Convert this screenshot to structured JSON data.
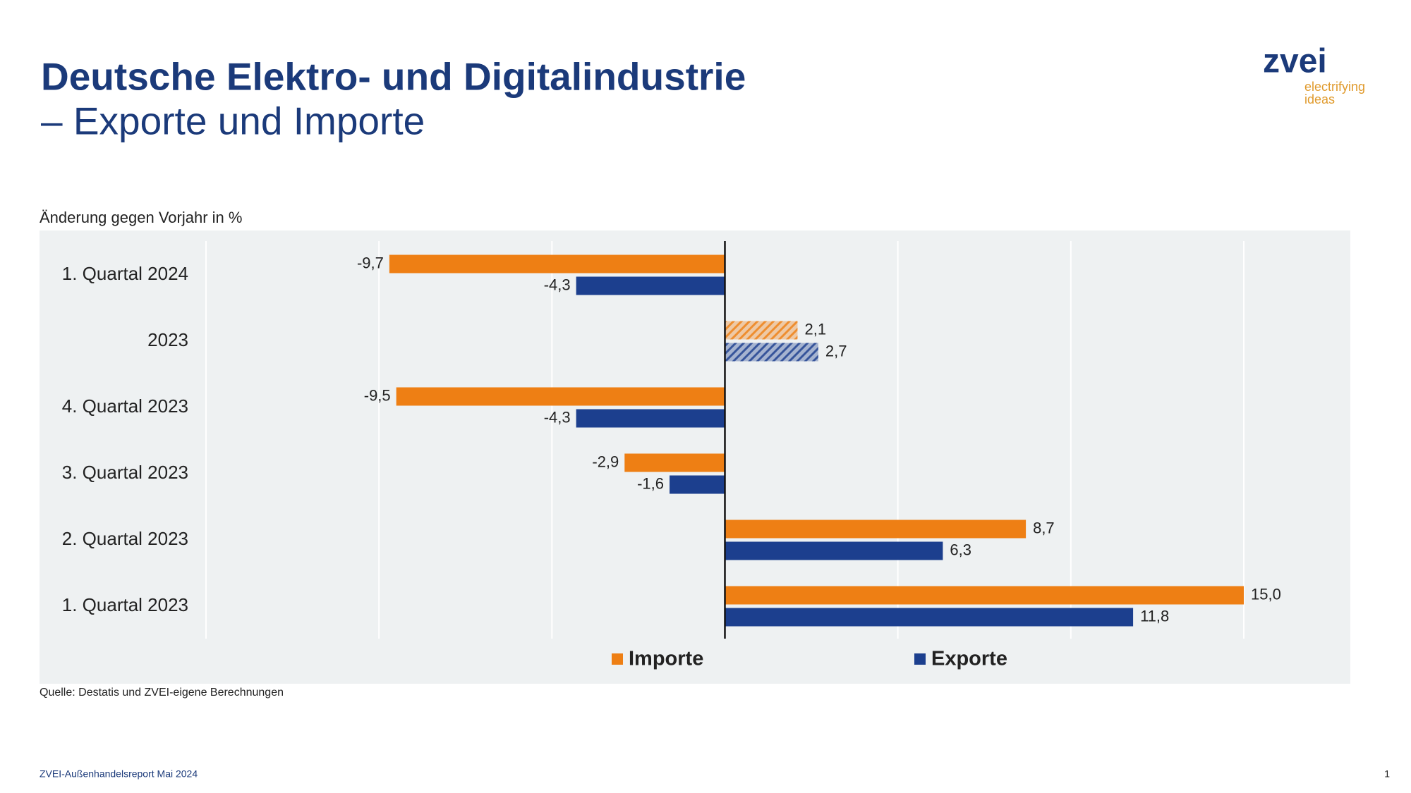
{
  "chart_data": {
    "type": "hbar",
    "title": "Deutsche Elektro- und Digitalindustrie",
    "subtitle": "– Exporte und Importe",
    "value_axis_label": "Änderung gegen Vorjahr in %",
    "source": "Quelle: Destatis und ZVEI-eigene Berechnungen",
    "categories": [
      "1. Quartal 2024",
      "2023",
      "4. Quartal 2023",
      "3. Quartal 2023",
      "2. Quartal 2023",
      "1. Quartal 2023"
    ],
    "series": [
      {
        "name": "Importe",
        "color": "#ee7f14",
        "values": [
          -9.7,
          2.1,
          -9.5,
          -2.9,
          8.7,
          15.0
        ],
        "value_labels": [
          "-9,7",
          "2,1",
          "-9,5",
          "-2,9",
          "8,7",
          "15,0"
        ]
      },
      {
        "name": "Exporte",
        "color": "#1c3f8e",
        "values": [
          -4.3,
          2.7,
          -4.3,
          -1.6,
          6.3,
          11.8
        ],
        "value_labels": [
          "-4,3",
          "2,7",
          "-4,3",
          "-1,6",
          "6,3",
          "11,8"
        ]
      }
    ],
    "hatched": [
      false,
      true,
      false,
      false,
      false,
      false
    ],
    "xlim": [
      -15,
      15
    ],
    "xticks": [
      -15,
      -10,
      -5,
      0,
      5,
      10,
      15
    ],
    "grid": true,
    "legend": "bottom"
  },
  "logo": {
    "name": "zvei",
    "tagline": [
      "electrifying",
      "ideas"
    ]
  },
  "footer": {
    "report": "ZVEI-Außenhandelsreport Mai 2024",
    "page": "1"
  }
}
